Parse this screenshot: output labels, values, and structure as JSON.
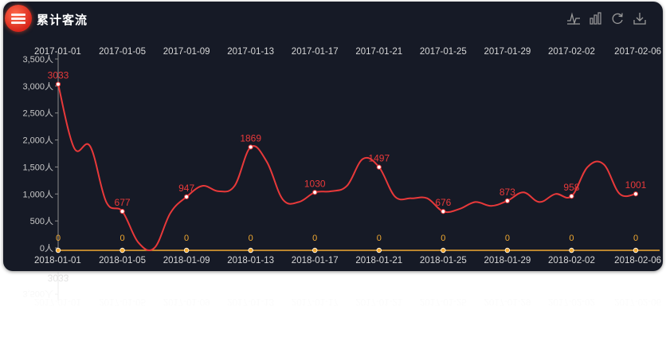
{
  "header": {
    "title": "累计客流"
  },
  "toolbox": [
    {
      "icon": "line-chart-icon"
    },
    {
      "icon": "bar-chart-icon"
    },
    {
      "icon": "refresh-icon"
    },
    {
      "icon": "download-icon"
    }
  ],
  "colors": {
    "background": "#161a26",
    "main_line": "#e8393a",
    "axis": "#8c8c8c",
    "second_line": "#f0a830",
    "label_text": "#ffffff"
  },
  "chart_data": {
    "type": "line",
    "title": "",
    "x_top": [
      "2017-01-01",
      "2017-01-05",
      "2017-01-09",
      "2017-01-13",
      "2017-01-17",
      "2017-01-21",
      "2017-01-25",
      "2017-01-29",
      "2017-02-02",
      "2017-02-06"
    ],
    "x_bottom": [
      "2018-01-01",
      "2018-01-05",
      "2018-01-09",
      "2018-01-13",
      "2018-01-17",
      "2018-01-21",
      "2018-01-25",
      "2018-01-29",
      "2018-02-02",
      "2018-02-06"
    ],
    "y_ticks": [
      "0人",
      "500人",
      "1,000人",
      "1,500人",
      "2,000人",
      "2,500人",
      "3,000人",
      "3,500人"
    ],
    "ylim": [
      0,
      3500
    ],
    "series": [
      {
        "values": [
          3033,
          1850,
          1880,
          850,
          677,
          100,
          0,
          650,
          947,
          1150,
          1050,
          1150,
          1869,
          1600,
          900,
          850,
          1030,
          1050,
          1150,
          1650,
          1497,
          950,
          920,
          920,
          676,
          720,
          850,
          780,
          873,
          1030,
          850,
          1000,
          958,
          1500,
          1550,
          1001,
          1001
        ],
        "labeled": [
          {
            "i": 0,
            "label": "3033"
          },
          {
            "i": 4,
            "label": "677"
          },
          {
            "i": 8,
            "label": "947"
          },
          {
            "i": 12,
            "label": "1869"
          },
          {
            "i": 16,
            "label": "1030"
          },
          {
            "i": 20,
            "label": "1497"
          },
          {
            "i": 24,
            "label": "676"
          },
          {
            "i": 28,
            "label": "873"
          },
          {
            "i": 32,
            "label": "958"
          },
          {
            "i": 36,
            "label": "1001"
          }
        ]
      },
      {
        "values": [
          0,
          0,
          0,
          0,
          0,
          0,
          0,
          0,
          0,
          0
        ],
        "labels": [
          "0",
          "0",
          "0",
          "0",
          "0",
          "0",
          "0",
          "0",
          "0",
          "0"
        ]
      }
    ],
    "grid": false
  }
}
